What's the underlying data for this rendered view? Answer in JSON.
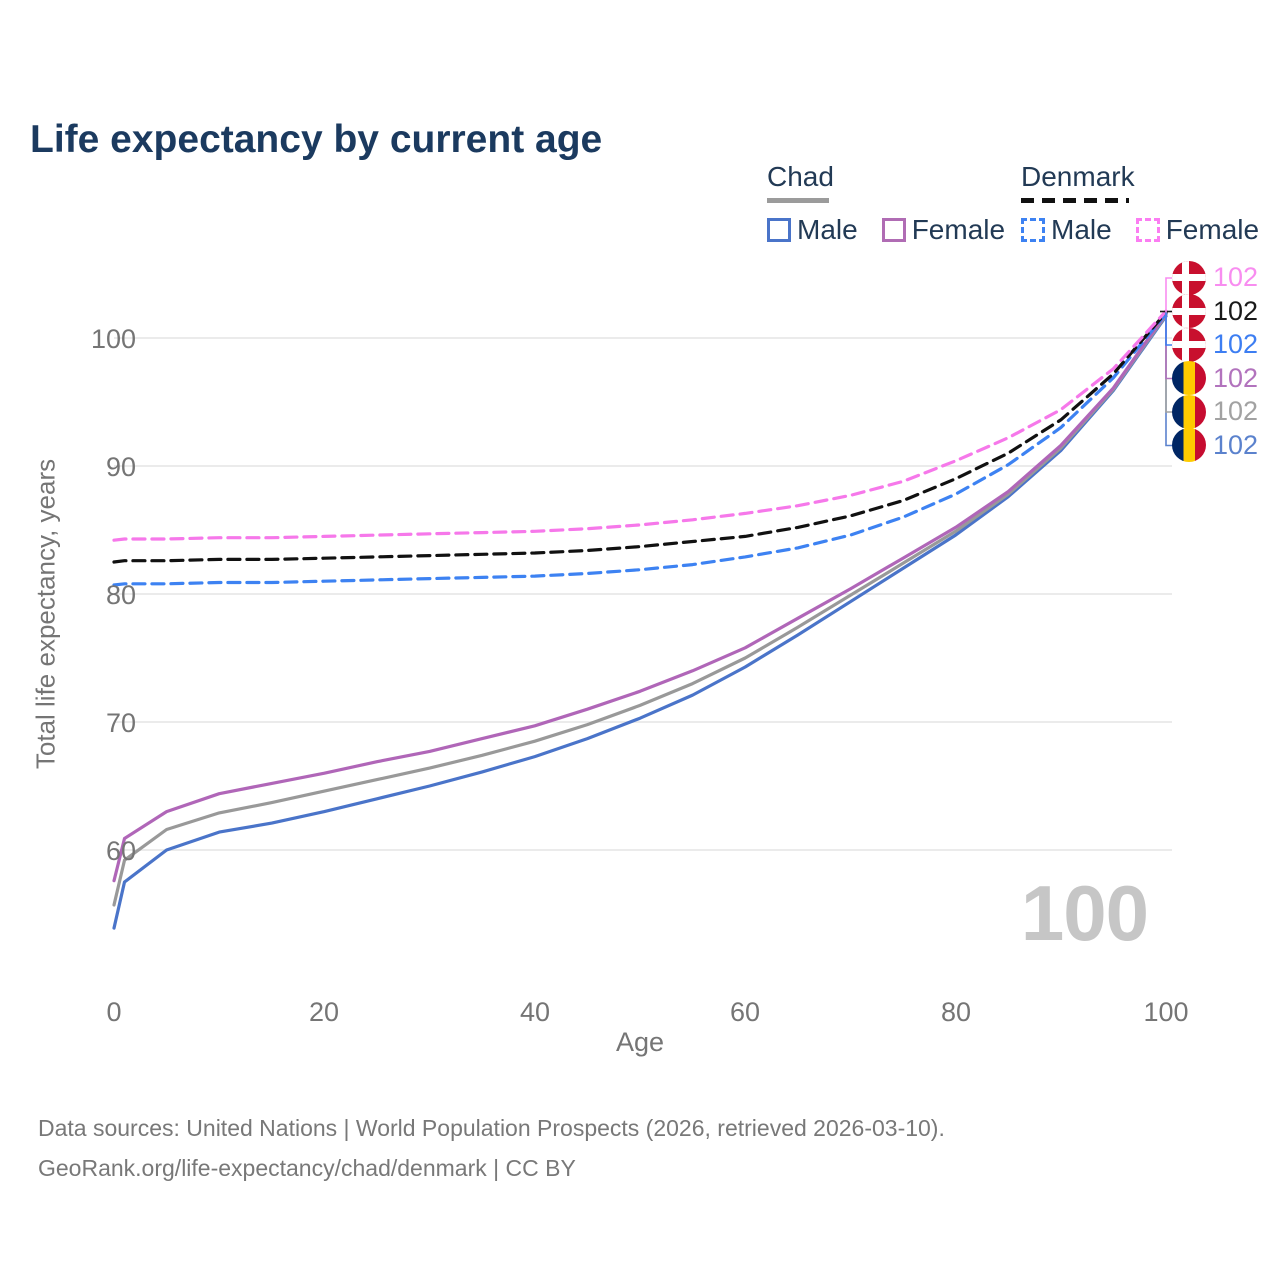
{
  "title": "Life expectancy by current age",
  "legend": {
    "chad_label": "Chad",
    "denmark_label": "Denmark",
    "chad_male_label": "Male",
    "chad_female_label": "Female",
    "denmark_male_label": "Male",
    "denmark_female_label": "Female"
  },
  "axes": {
    "x_label": "Age",
    "y_label": "Total life expectancy, years",
    "y_ticks": [
      "100",
      "90",
      "80",
      "70",
      "60"
    ],
    "x_ticks": [
      "0",
      "20",
      "40",
      "60",
      "80",
      "100"
    ]
  },
  "age_counter": "100",
  "value_labels": [
    {
      "flag": "denmark-flag",
      "value": "102",
      "color": "#f88df0"
    },
    {
      "flag": "denmark-flag",
      "value": "102",
      "color": "#1a1a1a"
    },
    {
      "flag": "denmark-flag",
      "value": "102",
      "color": "#3d7ef2"
    },
    {
      "flag": "chad-flag",
      "value": "102",
      "color": "#b273bd"
    },
    {
      "flag": "chad-flag",
      "value": "102",
      "color": "#a2a2a2"
    },
    {
      "flag": "chad-flag",
      "value": "102",
      "color": "#5b82cd"
    }
  ],
  "footer": {
    "line1": "Data sources: United Nations | World Population Prospects (2026, retrieved 2026-03-10).",
    "line2": "GeoRank.org/life-expectancy/chad/denmark | CC BY"
  },
  "chart_data": {
    "type": "line",
    "title": "Life expectancy by current age",
    "xlabel": "Age",
    "ylabel": "Total life expectancy, years",
    "xlim": [
      0,
      100
    ],
    "ylim": [
      53,
      104
    ],
    "y_gridlines": [
      60,
      70,
      80,
      90,
      100
    ],
    "x_ticks": [
      0,
      20,
      40,
      60,
      80,
      100
    ],
    "grid": "horizontal-only",
    "legend_position": "top-right",
    "x": [
      0,
      1,
      5,
      10,
      15,
      20,
      25,
      30,
      35,
      40,
      45,
      50,
      55,
      60,
      65,
      70,
      75,
      80,
      85,
      90,
      95,
      100
    ],
    "series": [
      {
        "name": "Chad Male",
        "country": "Chad",
        "sex": "Male",
        "style": "solid",
        "color": "#4a74c9",
        "end_label": "102",
        "values": [
          53.9,
          57.5,
          60.0,
          61.4,
          62.1,
          63.0,
          64.0,
          65.0,
          66.1,
          67.3,
          68.7,
          70.3,
          72.1,
          74.3,
          76.8,
          79.4,
          82.0,
          84.6,
          87.6,
          91.2,
          95.9,
          101.7
        ]
      },
      {
        "name": "Chad Total",
        "country": "Chad",
        "sex": "Both",
        "style": "solid",
        "color": "#999999",
        "end_label": "102",
        "values": [
          55.7,
          59.2,
          61.6,
          62.9,
          63.7,
          64.6,
          65.5,
          66.4,
          67.4,
          68.5,
          69.8,
          71.3,
          73.0,
          75.0,
          77.4,
          79.9,
          82.4,
          84.9,
          87.8,
          91.4,
          96.0,
          101.8
        ]
      },
      {
        "name": "Chad Female",
        "country": "Chad",
        "sex": "Female",
        "style": "solid",
        "color": "#b066b8",
        "end_label": "102",
        "values": [
          57.6,
          60.9,
          63.0,
          64.4,
          65.2,
          66.0,
          66.9,
          67.7,
          68.7,
          69.7,
          71.0,
          72.4,
          74.0,
          75.8,
          78.1,
          80.4,
          82.8,
          85.2,
          88.0,
          91.6,
          96.1,
          101.9
        ]
      },
      {
        "name": "Denmark Male",
        "country": "Denmark",
        "sex": "Male",
        "style": "dashed",
        "color": "#3d82f2",
        "end_label": "102",
        "values": [
          80.7,
          80.8,
          80.8,
          80.9,
          80.9,
          81.0,
          81.1,
          81.2,
          81.3,
          81.4,
          81.6,
          81.9,
          82.3,
          82.9,
          83.6,
          84.6,
          86.0,
          87.8,
          90.1,
          93.0,
          96.9,
          101.9
        ]
      },
      {
        "name": "Denmark Total",
        "country": "Denmark",
        "sex": "Both",
        "style": "dashed",
        "color": "#111111",
        "end_label": "102",
        "values": [
          82.5,
          82.6,
          82.6,
          82.7,
          82.7,
          82.8,
          82.9,
          83.0,
          83.1,
          83.2,
          83.4,
          83.7,
          84.1,
          84.5,
          85.2,
          86.1,
          87.3,
          89.0,
          91.0,
          93.6,
          97.2,
          102.0
        ]
      },
      {
        "name": "Denmark Female",
        "country": "Denmark",
        "sex": "Female",
        "style": "dashed",
        "color": "#f678ea",
        "end_label": "102",
        "values": [
          84.2,
          84.3,
          84.3,
          84.4,
          84.4,
          84.5,
          84.6,
          84.7,
          84.8,
          84.9,
          85.1,
          85.4,
          85.8,
          86.3,
          86.9,
          87.7,
          88.8,
          90.4,
          92.2,
          94.4,
          97.6,
          102.1
        ]
      }
    ]
  }
}
